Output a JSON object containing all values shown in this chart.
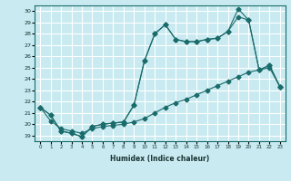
{
  "xlabel": "Humidex (Indice chaleur)",
  "bg_color": "#c8eaf0",
  "grid_color": "#ffffff",
  "line_color": "#1a6b6b",
  "xlim": [
    -0.5,
    23.5
  ],
  "ylim": [
    18.5,
    30.5
  ],
  "xticks": [
    0,
    1,
    2,
    3,
    4,
    5,
    6,
    7,
    8,
    9,
    10,
    11,
    12,
    13,
    14,
    15,
    16,
    17,
    18,
    19,
    20,
    21,
    22,
    23
  ],
  "yticks": [
    19,
    20,
    21,
    22,
    23,
    24,
    25,
    26,
    27,
    28,
    29,
    30
  ],
  "line1_x": [
    0,
    1,
    2,
    3,
    4,
    5,
    6,
    7,
    8,
    9,
    10,
    11,
    12,
    13,
    14,
    15,
    16,
    17,
    18,
    19,
    20,
    21,
    22,
    23
  ],
  "line1_y": [
    21.5,
    20.8,
    19.4,
    19.2,
    18.9,
    19.8,
    20.0,
    20.1,
    20.2,
    21.7,
    25.6,
    28.0,
    28.8,
    27.5,
    27.3,
    27.3,
    27.5,
    27.6,
    28.2,
    29.5,
    29.2,
    24.8,
    25.2,
    23.3
  ],
  "line2_x": [
    0,
    1,
    2,
    3,
    4,
    5,
    6,
    7,
    8,
    9,
    10,
    11,
    12,
    13,
    14,
    15,
    16,
    17,
    18,
    19,
    20,
    21,
    22,
    23
  ],
  "line2_y": [
    21.5,
    20.8,
    19.4,
    19.2,
    18.9,
    19.8,
    20.0,
    20.1,
    20.2,
    21.7,
    25.6,
    28.0,
    28.8,
    27.5,
    27.3,
    27.3,
    27.5,
    27.6,
    28.2,
    30.2,
    29.2,
    24.8,
    25.2,
    23.3
  ],
  "line3_x": [
    0,
    1,
    2,
    3,
    4,
    5,
    6,
    7,
    8,
    9,
    10,
    11,
    12,
    13,
    14,
    15,
    16,
    17,
    18,
    19,
    20,
    21,
    22,
    23
  ],
  "line3_y": [
    21.5,
    20.3,
    19.6,
    19.4,
    19.2,
    19.6,
    19.8,
    19.9,
    20.0,
    20.2,
    20.5,
    21.0,
    21.5,
    21.9,
    22.2,
    22.6,
    23.0,
    23.4,
    23.8,
    24.2,
    24.6,
    24.8,
    25.0,
    23.3
  ],
  "markersize": 2.5
}
